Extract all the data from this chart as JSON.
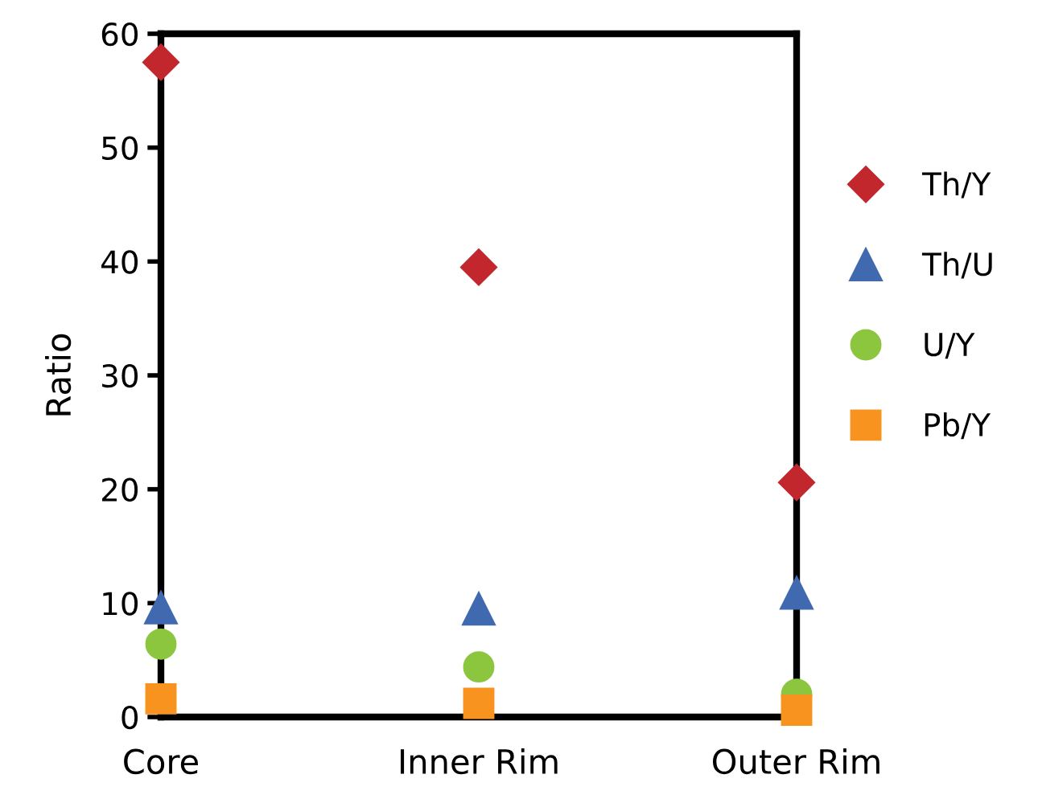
{
  "chart_data": {
    "type": "scatter",
    "ylabel": "Ratio",
    "categories": [
      "Core",
      "Inner Rim",
      "Outer Rim"
    ],
    "series": [
      {
        "name": "Th/Y",
        "color": "#c1272d",
        "marker": "diamond",
        "values": [
          57.5,
          39.5,
          20.6
        ]
      },
      {
        "name": "Th/U",
        "color": "#4169b0",
        "marker": "triangle",
        "values": [
          9.6,
          9.5,
          10.9
        ]
      },
      {
        "name": "U/Y",
        "color": "#8cc63f",
        "marker": "circle",
        "values": [
          6.4,
          4.4,
          2.0
        ]
      },
      {
        "name": "Pb/Y",
        "color": "#f7931e",
        "marker": "square",
        "values": [
          1.6,
          1.2,
          0.6
        ]
      }
    ],
    "ylim": [
      0,
      60
    ],
    "yticks": [
      0,
      10,
      20,
      30,
      40,
      50,
      60
    ],
    "grid": false,
    "legend": "right"
  }
}
